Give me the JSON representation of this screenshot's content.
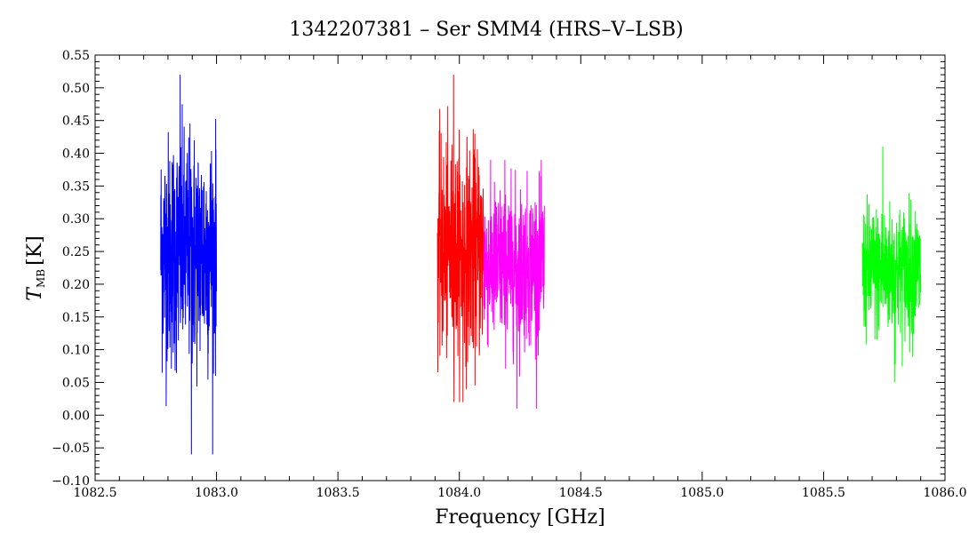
{
  "chart_data": {
    "type": "line",
    "title": "1342207381 – Ser SMM4 (HRS–V–LSB)",
    "xlabel": "Frequency [GHz]",
    "ylabel": "T",
    "ylabel_subscript": "MB",
    "ylabel_unit": "[K]",
    "xlim": [
      1082.5,
      1086.0
    ],
    "ylim": [
      -0.1,
      0.55
    ],
    "x_ticks": [
      1082.5,
      1083.0,
      1083.5,
      1084.0,
      1084.5,
      1085.0,
      1085.5,
      1086.0
    ],
    "x_tick_labels": [
      "1082.5",
      "1083.0",
      "1083.5",
      "1084.0",
      "1084.5",
      "1085.0",
      "1085.5",
      "1086.0"
    ],
    "y_ticks": [
      -0.1,
      -0.05,
      0.0,
      0.05,
      0.1,
      0.15,
      0.2,
      0.25,
      0.3,
      0.35,
      0.4,
      0.45,
      0.5,
      0.55
    ],
    "y_tick_labels": [
      "−0.10",
      "−0.05",
      "0.00",
      "0.05",
      "0.10",
      "0.15",
      "0.20",
      "0.25",
      "0.30",
      "0.35",
      "0.40",
      "0.45",
      "0.50",
      "0.55"
    ],
    "grid": false,
    "legend": "none",
    "series": [
      {
        "color": "#0000ff",
        "x_start": 1082.77,
        "x_end": 1083.0,
        "center": 0.25,
        "spread": 0.09,
        "min": -0.06,
        "max": 0.52
      },
      {
        "color": "#ff0000",
        "x_start": 1083.91,
        "x_end": 1084.1,
        "center": 0.25,
        "spread": 0.08,
        "min": 0.02,
        "max": 0.52
      },
      {
        "color": "#ff00ff",
        "x_start": 1084.1,
        "x_end": 1084.35,
        "center": 0.23,
        "spread": 0.06,
        "min": 0.01,
        "max": 0.39
      },
      {
        "color": "#00ff00",
        "x_start": 1085.66,
        "x_end": 1085.9,
        "center": 0.22,
        "spread": 0.05,
        "min": 0.05,
        "max": 0.41
      }
    ]
  }
}
